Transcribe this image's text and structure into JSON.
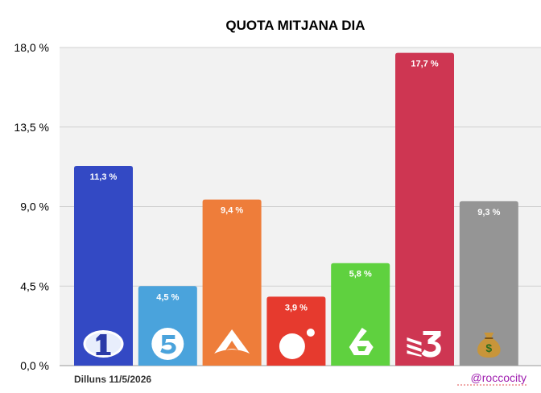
{
  "chart_data": {
    "type": "bar",
    "title": "QUOTA MITJANA DIA",
    "categories": [
      "La 1",
      "Telecinco",
      "Antena 3",
      "Cuatro",
      "laSexta",
      "TV3",
      "Resta"
    ],
    "values": [
      11.3,
      4.5,
      9.4,
      3.9,
      5.8,
      17.7,
      9.3
    ],
    "value_labels": [
      "11,3 %",
      "4,5 %",
      "9,4 %",
      "3,9 %",
      "5,8 %",
      "17,7 %",
      "9,3 %"
    ],
    "colors": [
      "#3349c4",
      "#4aa3dc",
      "#ee7d3a",
      "#e63a2e",
      "#5fd13f",
      "#ce3652",
      "#959595"
    ],
    "icons": [
      "la1-logo-icon",
      "telecinco-logo-icon",
      "antena3-logo-icon",
      "cuatro-logo-icon",
      "lasexta-logo-icon",
      "tv3-logo-icon",
      "money-bag-icon"
    ],
    "ylim": [
      0,
      18
    ],
    "yticks": [
      0,
      4.5,
      9,
      13.5,
      18
    ],
    "ytick_labels": [
      "0,0 %",
      "4,5 %",
      "9,0 %",
      "13,5 %",
      "18,0 %"
    ],
    "grid": true,
    "background": "#f2f2f2",
    "xlabel": "",
    "ylabel": ""
  },
  "footer": {
    "date": "Dilluns 11/5/2026",
    "handle": "@roccocity"
  }
}
